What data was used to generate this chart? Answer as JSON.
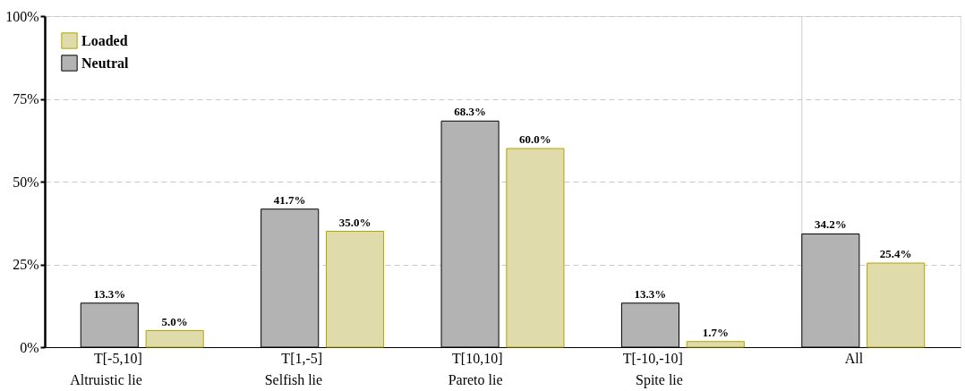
{
  "chart_data": {
    "type": "bar",
    "categories": [
      "T[-5,10]\nAltruistic lie",
      "T[1,-5]\nSelfish lie",
      "T[10,10]\nPareto lie",
      "T[-10,-10]\nSpite lie",
      "All"
    ],
    "series": [
      {
        "name": "Neutral",
        "color": "#b3b3b3",
        "values": [
          13.3,
          41.7,
          68.3,
          13.3,
          34.2
        ],
        "value_labels": [
          "13.3%",
          "41.7%",
          "68.3%",
          "13.3%",
          "34.2%"
        ]
      },
      {
        "name": "Loaded",
        "color": "#e0dbaa",
        "values": [
          5.0,
          35.0,
          60.0,
          1.7,
          25.4
        ],
        "value_labels": [
          "5.0%",
          "35.0%",
          "60.0%",
          "1.7%",
          "25.4%"
        ]
      }
    ],
    "ylim": [
      0,
      100
    ],
    "yticks": [
      {
        "value": 0,
        "label": "0%"
      },
      {
        "value": 25,
        "label": "25%"
      },
      {
        "value": 50,
        "label": "50%"
      },
      {
        "value": 75,
        "label": "75%"
      },
      {
        "value": 100,
        "label": "100%"
      }
    ],
    "grid": "y",
    "legend": "top left",
    "ref_lines": [
      {
        "axis": "x",
        "value": "All",
        "color": "#cccccc"
      }
    ]
  }
}
